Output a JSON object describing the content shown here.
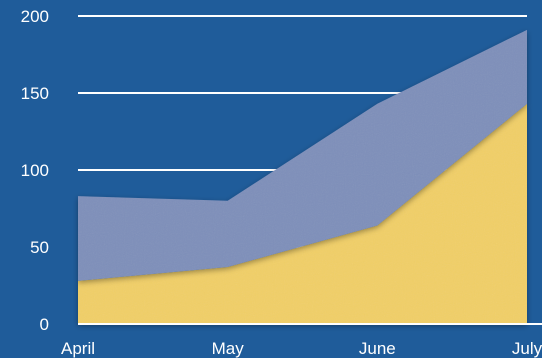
{
  "chart_data": {
    "type": "area",
    "stacked": true,
    "categories": [
      "April",
      "May",
      "June",
      "July"
    ],
    "series": [
      {
        "values": [
          28,
          37,
          64,
          143
        ],
        "color": "#f1cf66"
      },
      {
        "values": [
          55,
          43,
          79,
          48
        ],
        "color": "#7e8fba"
      }
    ],
    "yticks": [
      0,
      50,
      100,
      150,
      200
    ],
    "ylim": [
      0,
      200
    ],
    "grid": true,
    "grid_color": "#ffffff",
    "background_color": "#1f5c9a",
    "legend": "none",
    "title": "",
    "xlabel": "",
    "ylabel": ""
  }
}
